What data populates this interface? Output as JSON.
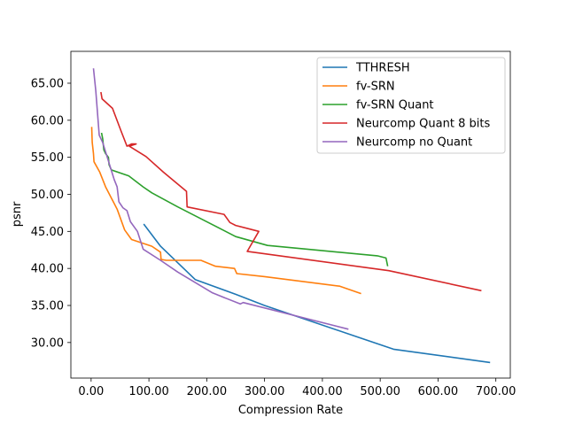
{
  "chart_data": {
    "type": "line",
    "xlabel": "Compression Rate",
    "ylabel": "psnr",
    "xlim": [
      -35,
      725
    ],
    "ylim": [
      25.2,
      69.3
    ],
    "xticks": [
      0,
      100,
      200,
      300,
      400,
      500,
      600,
      700
    ],
    "xtick_labels": [
      "0.00",
      "100.00",
      "200.00",
      "300.00",
      "400.00",
      "500.00",
      "600.00",
      "700.00"
    ],
    "yticks": [
      30,
      35,
      40,
      45,
      50,
      55,
      60,
      65
    ],
    "ytick_labels": [
      "30.00",
      "35.00",
      "40.00",
      "45.00",
      "50.00",
      "55.00",
      "60.00",
      "65.00"
    ],
    "grid": false,
    "legend_position": "upper-right",
    "series": [
      {
        "name": "TTHRESH",
        "color": "#1f77b4",
        "points": [
          [
            91,
            46
          ],
          [
            120,
            43
          ],
          [
            180,
            38.5
          ],
          [
            250,
            36.5
          ],
          [
            300,
            35
          ],
          [
            523,
            29.1
          ],
          [
            690,
            27.3
          ]
        ]
      },
      {
        "name": "fv-SRN",
        "color": "#ff7f0e",
        "points": [
          [
            1,
            59.1
          ],
          [
            2,
            57.0
          ],
          [
            4,
            55.5
          ],
          [
            5,
            54.4
          ],
          [
            15,
            53.0
          ],
          [
            25,
            51.0
          ],
          [
            45,
            48.0
          ],
          [
            58,
            45.2
          ],
          [
            70,
            43.9
          ],
          [
            105,
            43.0
          ],
          [
            120,
            42.2
          ],
          [
            121,
            41.2
          ],
          [
            130,
            41.1
          ],
          [
            190,
            41.1
          ],
          [
            215,
            40.3
          ],
          [
            248,
            40.0
          ],
          [
            252,
            39.3
          ],
          [
            300,
            38.9
          ],
          [
            430,
            37.6
          ],
          [
            467,
            36.6
          ]
        ]
      },
      {
        "name": "fv-SRN Quant",
        "color": "#2ca02c",
        "points": [
          [
            18,
            58.3
          ],
          [
            20,
            57.5
          ],
          [
            22,
            56.0
          ],
          [
            25,
            55.5
          ],
          [
            30,
            55.0
          ],
          [
            31,
            54.0
          ],
          [
            35,
            53.3
          ],
          [
            65,
            52.5
          ],
          [
            90,
            51.0
          ],
          [
            105,
            50.2
          ],
          [
            150,
            48.3
          ],
          [
            200,
            46.3
          ],
          [
            250,
            44.3
          ],
          [
            305,
            43.1
          ],
          [
            400,
            42.4
          ],
          [
            495,
            41.7
          ],
          [
            510,
            41.4
          ],
          [
            513,
            40.3
          ]
        ]
      },
      {
        "name": "Neurcomp Quant 8 bits",
        "color": "#d62728",
        "points": [
          [
            17,
            63.8
          ],
          [
            19,
            62.9
          ],
          [
            37,
            61.6
          ],
          [
            52,
            58.5
          ],
          [
            62,
            56.5
          ],
          [
            70,
            56.8
          ],
          [
            78,
            56.8
          ],
          [
            66,
            56.5
          ],
          [
            95,
            55.1
          ],
          [
            125,
            53.0
          ],
          [
            165,
            50.4
          ],
          [
            166,
            48.3
          ],
          [
            230,
            47.3
          ],
          [
            240,
            46.2
          ],
          [
            250,
            45.8
          ],
          [
            290,
            45.0
          ],
          [
            270,
            42.3
          ],
          [
            515,
            39.7
          ],
          [
            675,
            37.0
          ]
        ]
      },
      {
        "name": "Neurcomp no Quant",
        "color": "#9467bd",
        "points": [
          [
            4,
            67
          ],
          [
            8,
            64
          ],
          [
            14,
            58
          ],
          [
            20,
            57
          ],
          [
            28,
            55
          ],
          [
            40,
            52
          ],
          [
            45,
            51
          ],
          [
            48,
            49
          ],
          [
            55,
            48.2
          ],
          [
            62,
            47.8
          ],
          [
            68,
            46.3
          ],
          [
            80,
            45.0
          ],
          [
            90,
            42.6
          ],
          [
            120,
            41.1
          ],
          [
            150,
            39.5
          ],
          [
            210,
            36.7
          ],
          [
            258,
            35.2
          ],
          [
            263,
            35.4
          ],
          [
            445,
            31.8
          ]
        ]
      }
    ]
  }
}
